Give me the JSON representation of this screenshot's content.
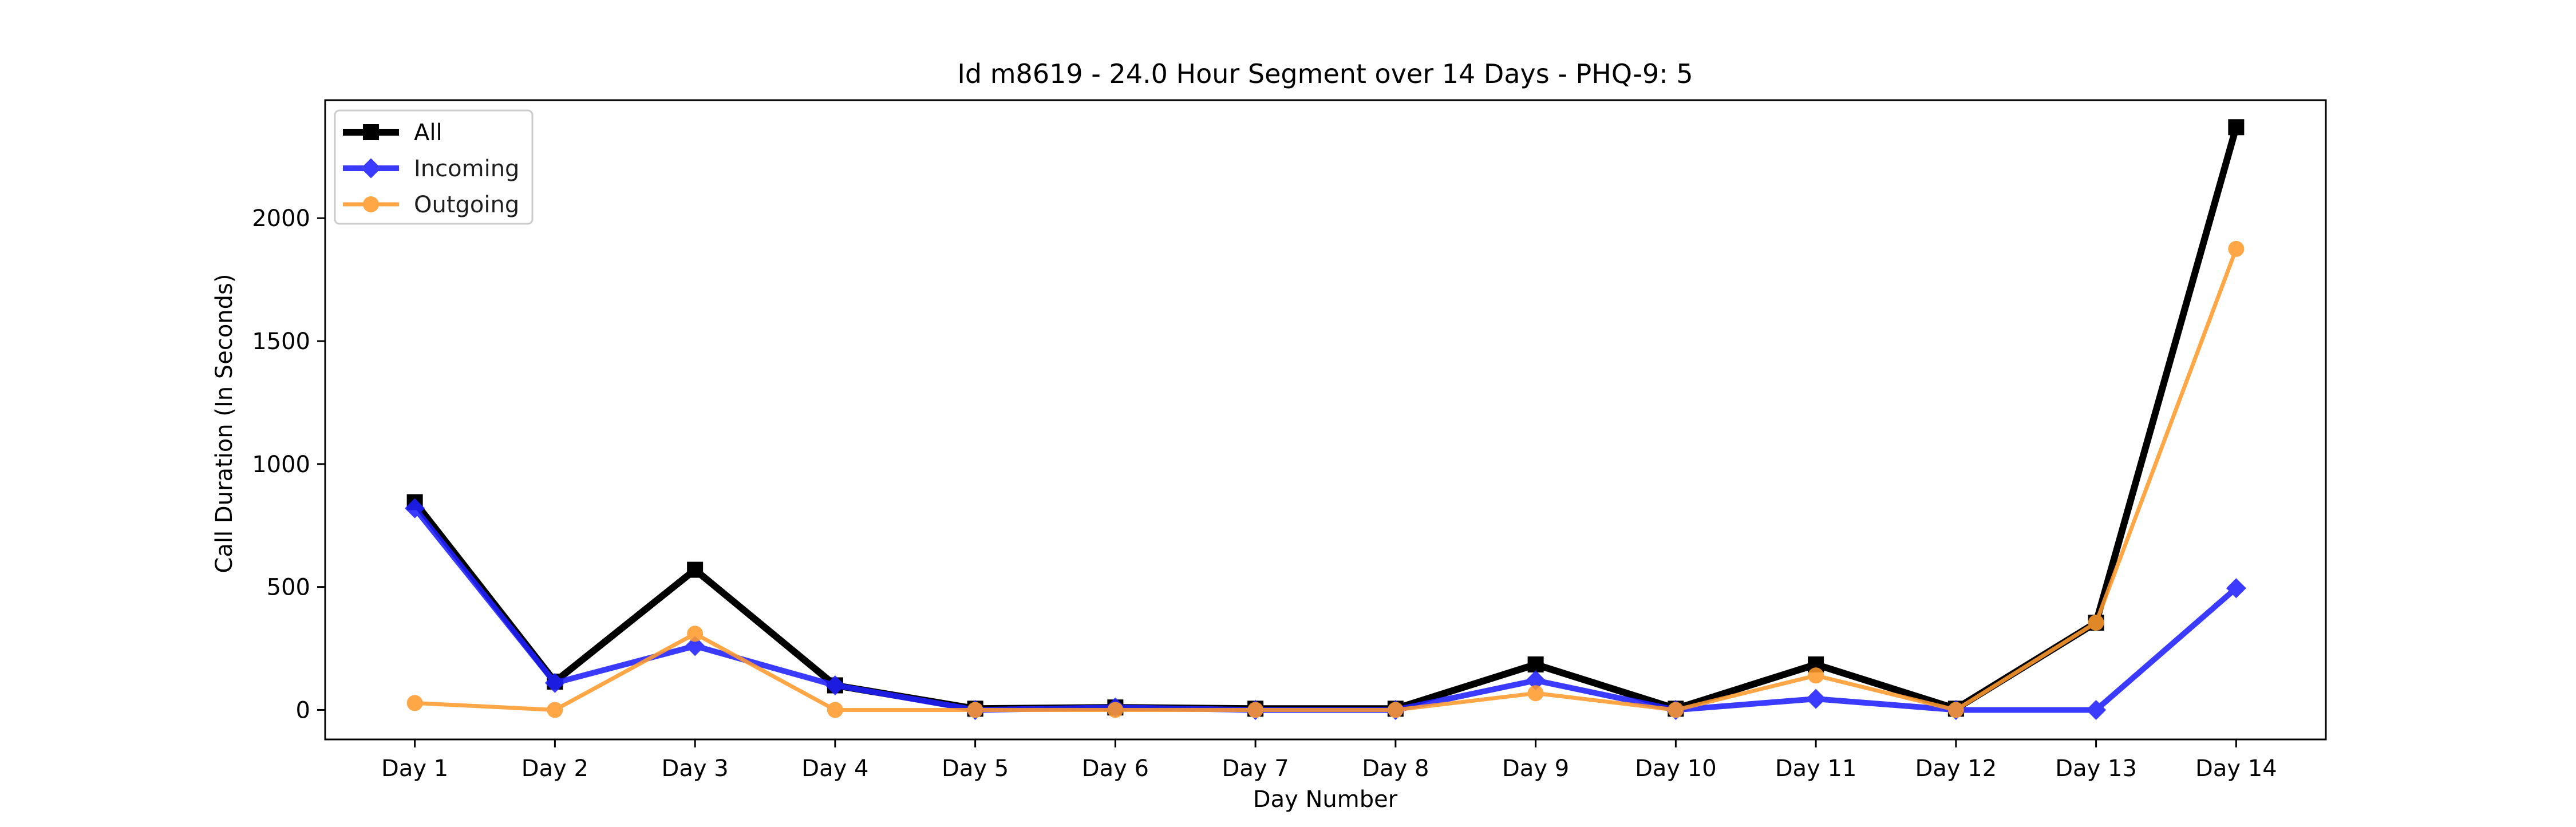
{
  "chart_data": {
    "type": "line",
    "title": "Id m8619 - 24.0 Hour Segment over 14 Days - PHQ-9: 5",
    "xlabel": "Day Number",
    "ylabel": "Call Duration (In Seconds)",
    "categories": [
      "Day 1",
      "Day 2",
      "Day 3",
      "Day 4",
      "Day 5",
      "Day 6",
      "Day 7",
      "Day 8",
      "Day 9",
      "Day 10",
      "Day 11",
      "Day 12",
      "Day 13",
      "Day 14"
    ],
    "yticks": [
      0,
      500,
      1000,
      1500,
      2000
    ],
    "ylim": [
      -120,
      2480
    ],
    "grid": false,
    "legend_position": "top-left",
    "series": [
      {
        "name": "All",
        "color": "#000000",
        "marker": "square",
        "values": [
          845,
          115,
          570,
          100,
          5,
          10,
          5,
          5,
          185,
          5,
          185,
          5,
          355,
          2370
        ]
      },
      {
        "name": "Incoming",
        "color": "#2020ff",
        "marker": "diamond",
        "values": [
          820,
          110,
          260,
          100,
          0,
          10,
          0,
          0,
          120,
          0,
          45,
          0,
          0,
          495
        ]
      },
      {
        "name": "Outgoing",
        "color": "#ff9a2e",
        "marker": "circle",
        "values": [
          28,
          0,
          310,
          0,
          0,
          0,
          0,
          0,
          68,
          0,
          140,
          0,
          355,
          1875
        ]
      }
    ]
  }
}
